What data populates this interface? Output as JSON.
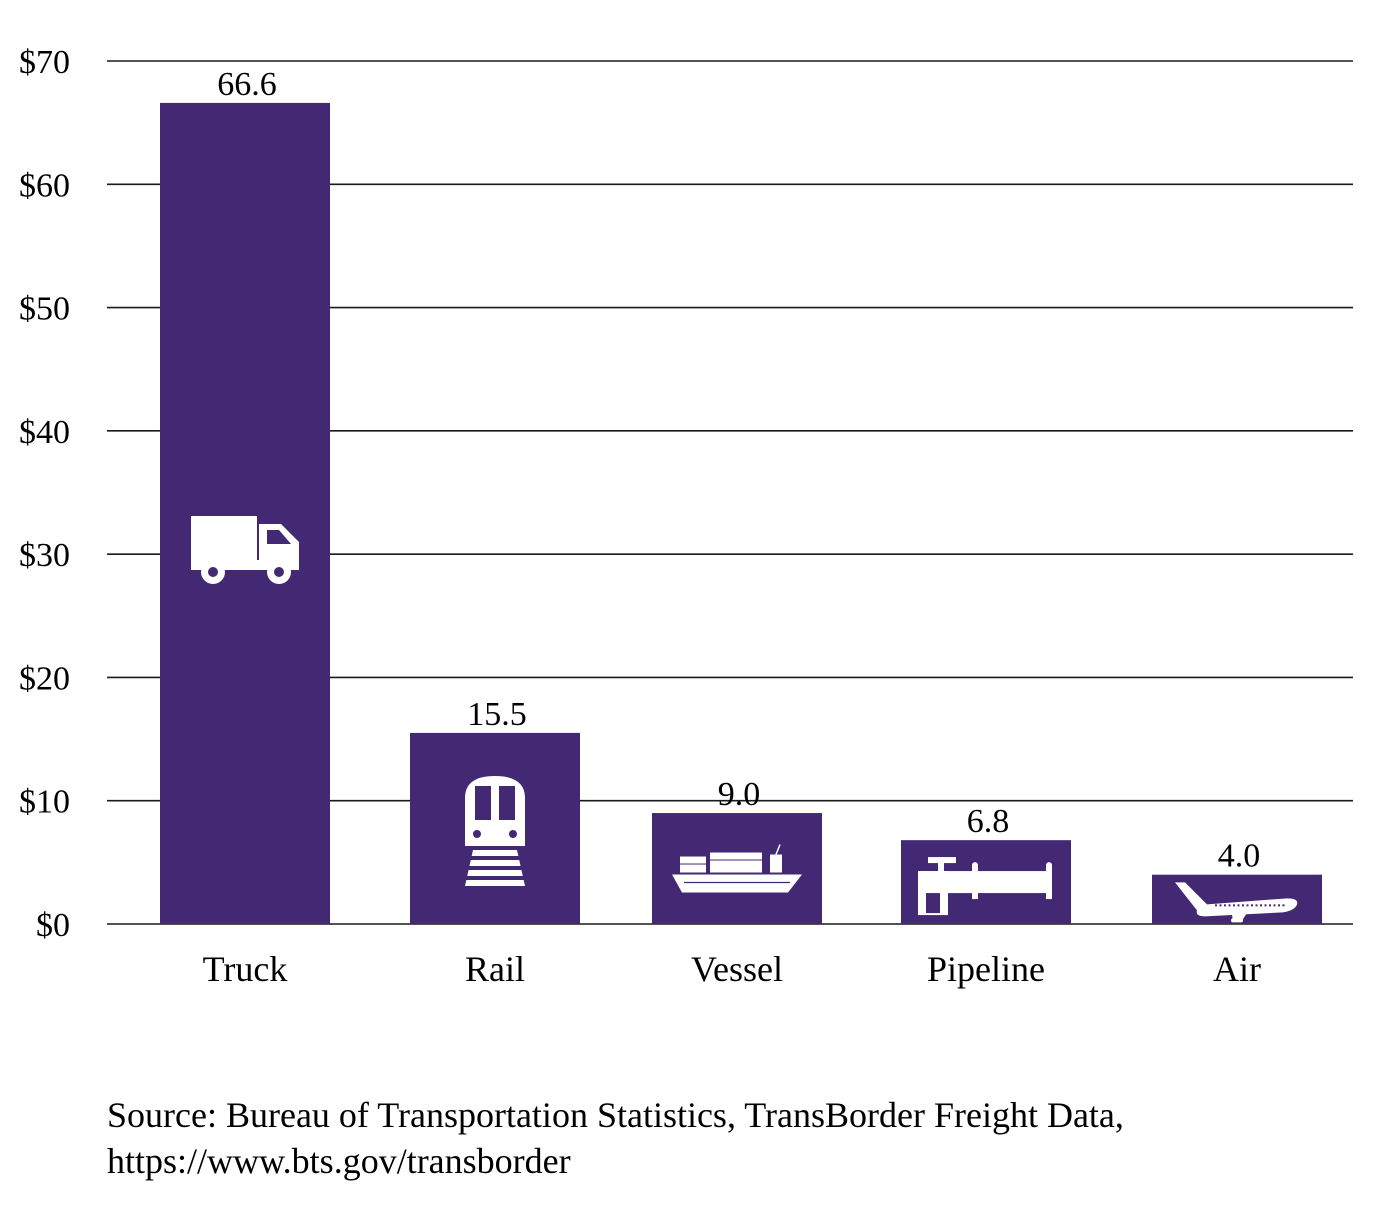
{
  "chart_data": {
    "type": "bar",
    "categories": [
      "Truck",
      "Rail",
      "Vessel",
      "Pipeline",
      "Air"
    ],
    "values": [
      66.6,
      15.5,
      9.0,
      6.8,
      4.0
    ],
    "data_labels": [
      "66.6",
      "15.5",
      "9.0",
      "6.8",
      "4.0"
    ],
    "icons": [
      "truck-icon",
      "train-icon",
      "ship-icon",
      "pipeline-icon",
      "airplane-icon"
    ],
    "y_ticks": [
      0,
      10,
      20,
      30,
      40,
      50,
      60,
      70
    ],
    "y_tick_labels": [
      "$0",
      "$10",
      "$20",
      "$30",
      "$40",
      "$50",
      "$60",
      "$70"
    ],
    "ylim": [
      0,
      70
    ],
    "grid": true,
    "title": "",
    "xlabel": "",
    "ylabel": "",
    "bar_color": "#432873",
    "icon_color": "#ffffff"
  },
  "source": {
    "line1": "Source: Bureau of Transportation Statistics, TransBorder Freight Data,",
    "line2": "https://www.bts.gov/transborder"
  }
}
